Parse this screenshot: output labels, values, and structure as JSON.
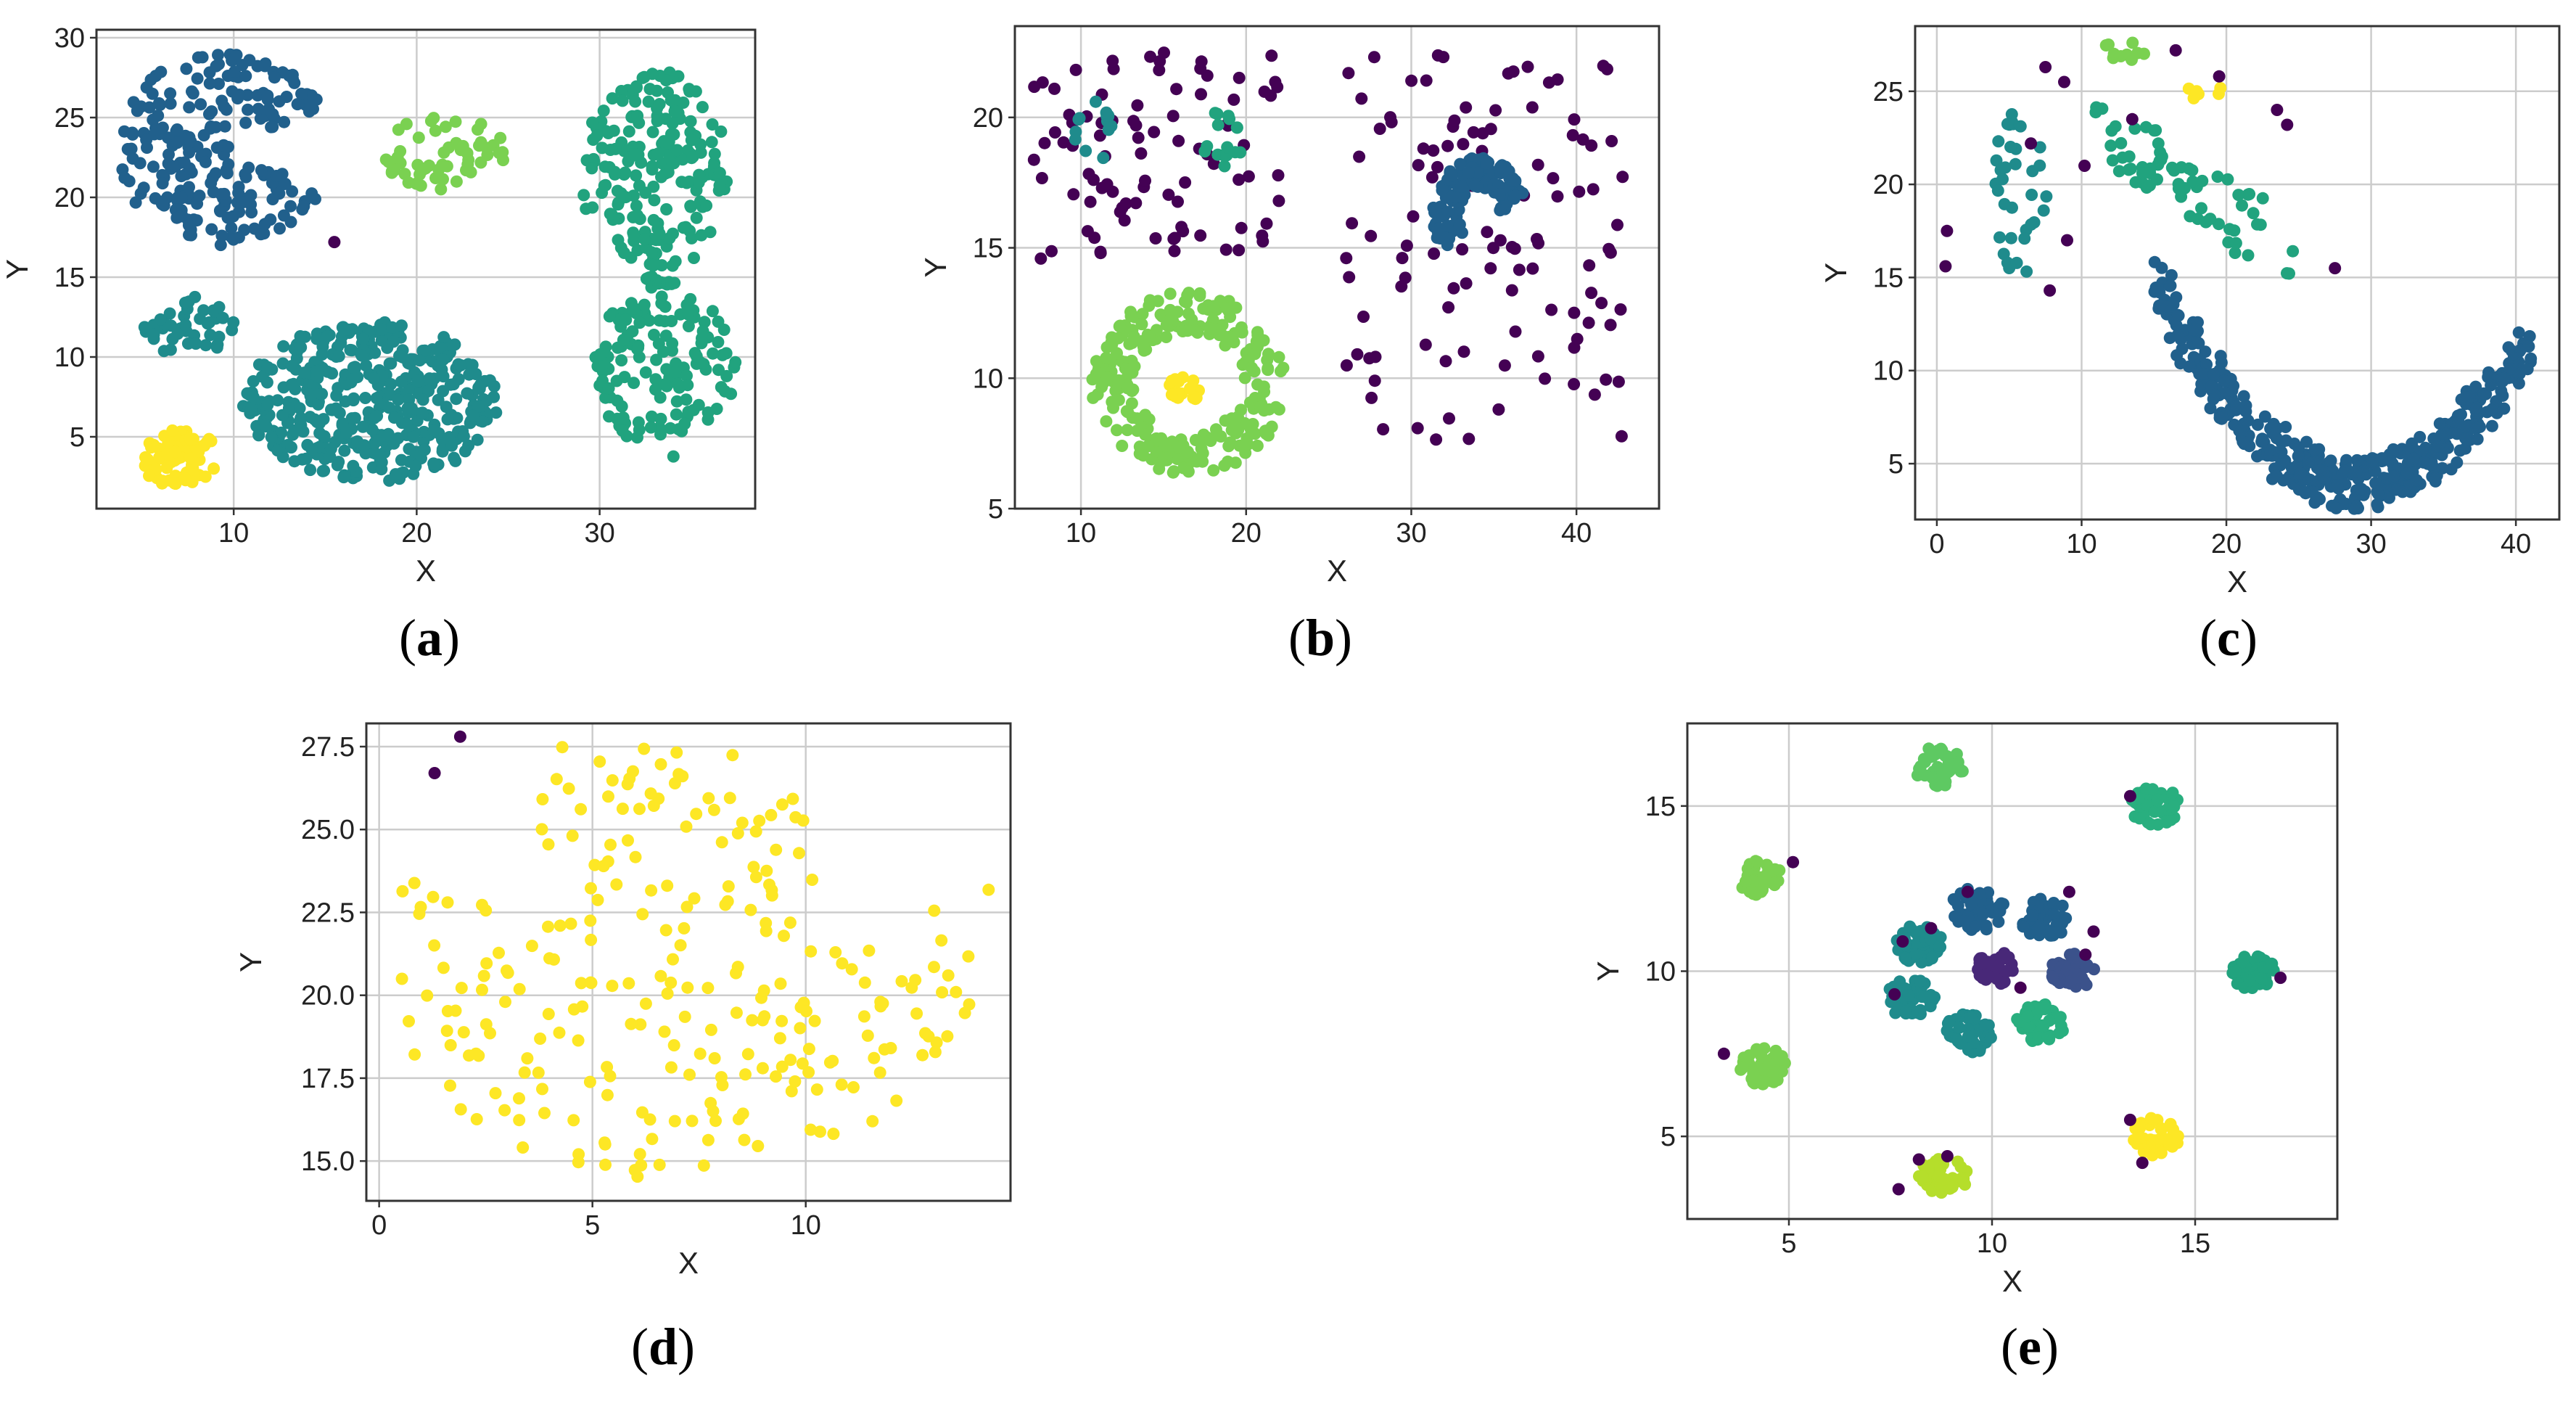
{
  "chart_data": [
    {
      "panel": "a",
      "type": "scatter",
      "caption": "a",
      "xlabel": "X",
      "ylabel": "Y",
      "xlim": [
        2.5,
        38.5
      ],
      "ylim": [
        0.5,
        30.5
      ],
      "xticks": [
        10,
        20,
        30
      ],
      "yticks": [
        5,
        10,
        15,
        20,
        25,
        30
      ],
      "grid": true,
      "colors": {
        "noise": "#440154",
        "c1": "#21608c",
        "c2": "#1f8b8c",
        "c3": "#21a37e",
        "c4": "#7ad151",
        "c5": "#fde725"
      },
      "clusters": [
        {
          "name": "c1",
          "shape": "pacman",
          "cx": 9.5,
          "cy": 23,
          "rx": 6,
          "ry": 6,
          "n": 240
        },
        {
          "name": "c4",
          "shape": "ellipse",
          "cx": 21.5,
          "cy": 22.8,
          "rx": 3.5,
          "ry": 2.3,
          "n": 55
        },
        {
          "name": "c3",
          "shape": "ellipse",
          "cx": 33,
          "cy": 21.5,
          "rx": 4,
          "ry": 6.5,
          "n": 200
        },
        {
          "name": "c3",
          "shape": "ellipse",
          "cx": 33.5,
          "cy": 9,
          "rx": 4,
          "ry": 5.5,
          "n": 140
        },
        {
          "name": "c3",
          "shape": "line",
          "x1": 32.5,
          "y1": 15,
          "x2": 34,
          "y2": 14.5,
          "n": 12
        },
        {
          "name": "c2",
          "shape": "ellipse",
          "cx": 17.5,
          "cy": 7.2,
          "rx": 7,
          "ry": 5,
          "n": 420
        },
        {
          "name": "c2",
          "shape": "ellipse",
          "cx": 7.5,
          "cy": 12,
          "rx": 2.5,
          "ry": 2,
          "n": 45
        },
        {
          "name": "c5",
          "shape": "ellipse",
          "cx": 7,
          "cy": 3.7,
          "rx": 2.2,
          "ry": 1.8,
          "n": 75
        }
      ],
      "noise_points": [
        [
          15.5,
          17.2
        ]
      ]
    },
    {
      "panel": "b",
      "type": "scatter",
      "caption": "b",
      "xlabel": "X",
      "ylabel": "Y",
      "xlim": [
        6,
        45
      ],
      "ylim": [
        5,
        23.5
      ],
      "xticks": [
        10,
        20,
        30,
        40
      ],
      "yticks": [
        5,
        10,
        15,
        20
      ],
      "grid": true,
      "colors": {
        "noise": "#440154",
        "c1": "#21608c",
        "c2": "#1f8b8c",
        "c3": "#21a37e",
        "c4": "#7ad151",
        "c5": "#fde725"
      },
      "clusters": [
        {
          "name": "noise",
          "shape": "grid",
          "x0": 7,
          "x1": 22,
          "y0": 14.5,
          "y1": 22.5,
          "n": 90
        },
        {
          "name": "noise",
          "shape": "grid",
          "x0": 26,
          "x1": 43,
          "y0": 7.5,
          "y1": 22.5,
          "n": 110
        },
        {
          "name": "c2",
          "shape": "ellipse",
          "cx": 10.8,
          "cy": 19.5,
          "rx": 1.2,
          "ry": 1.2,
          "n": 14
        },
        {
          "name": "c3",
          "shape": "ellipse",
          "cx": 18.5,
          "cy": 19,
          "rx": 1.3,
          "ry": 1.3,
          "n": 16
        },
        {
          "name": "c1",
          "shape": "arch",
          "cx": 35,
          "cy": 16.5,
          "rx": 4,
          "ry": 3,
          "n": 150
        },
        {
          "name": "c4",
          "shape": "ring",
          "cx": 16.5,
          "cy": 9.8,
          "rx": 6,
          "ry": 3.5,
          "n": 260
        },
        {
          "name": "c5",
          "shape": "ellipse",
          "cx": 16.3,
          "cy": 9.5,
          "rx": 1.1,
          "ry": 0.6,
          "n": 22
        }
      ],
      "noise_points": []
    },
    {
      "panel": "c",
      "type": "scatter",
      "caption": "c",
      "xlabel": "X",
      "ylabel": "Y",
      "xlim": [
        -1.5,
        43
      ],
      "ylim": [
        2,
        28.5
      ],
      "xticks": [
        0,
        10,
        20,
        30,
        40
      ],
      "yticks": [
        5,
        10,
        15,
        20,
        25
      ],
      "grid": true,
      "colors": {
        "noise": "#440154",
        "c1": "#21608c",
        "c2": "#1f8b8c",
        "c3": "#21a37e",
        "c4": "#7ad151",
        "c5": "#fde725"
      },
      "clusters": [
        {
          "name": "c2",
          "shape": "ellipse",
          "cx": 5.5,
          "cy": 19.5,
          "rx": 2.2,
          "ry": 4.5,
          "n": 35
        },
        {
          "name": "c3",
          "shape": "band",
          "x1": 11,
          "y1": 23,
          "x2": 25,
          "y2": 16,
          "w": 3.5,
          "n": 70
        },
        {
          "name": "c4",
          "shape": "ellipse",
          "cx": 13,
          "cy": 27.2,
          "rx": 1.5,
          "ry": 0.6,
          "n": 10
        },
        {
          "name": "c5",
          "shape": "ellipse",
          "cx": 18.5,
          "cy": 25,
          "rx": 1.2,
          "ry": 0.5,
          "n": 6
        },
        {
          "name": "c1",
          "shape": "ucurve",
          "n": 420
        }
      ],
      "noise_points": [
        [
          0.7,
          17.5
        ],
        [
          0.6,
          15.6
        ],
        [
          6.5,
          22.2
        ],
        [
          7.5,
          26.3
        ],
        [
          8.8,
          25.5
        ],
        [
          10.2,
          21.0
        ],
        [
          13.5,
          23.5
        ],
        [
          16.5,
          27.2
        ],
        [
          19.5,
          25.8
        ],
        [
          23.5,
          24.0
        ],
        [
          24.2,
          23.2
        ],
        [
          27.5,
          15.5
        ],
        [
          9.0,
          17.0
        ],
        [
          7.8,
          14.3
        ]
      ]
    },
    {
      "panel": "d",
      "type": "scatter",
      "caption": "d",
      "xlabel": "X",
      "ylabel": "Y",
      "xlim": [
        -0.3,
        14.8
      ],
      "ylim": [
        13.8,
        28.2
      ],
      "xticks": [
        0,
        5,
        10
      ],
      "yticks": [
        15.0,
        17.5,
        20.0,
        22.5,
        25.0,
        27.5
      ],
      "ytick_labels": [
        "15.0",
        "17.5",
        "20.0",
        "22.5",
        "25.0",
        "27.5"
      ],
      "grid": true,
      "colors": {
        "noise": "#440154",
        "c5": "#fde725"
      },
      "clusters": [
        {
          "name": "c5",
          "shape": "bowl",
          "n": 260
        }
      ],
      "noise_points": [
        [
          1.3,
          26.7
        ],
        [
          1.9,
          27.8
        ]
      ]
    },
    {
      "panel": "e",
      "type": "scatter",
      "caption": "e",
      "xlabel": "X",
      "ylabel": "Y",
      "xlim": [
        2.5,
        18.5
      ],
      "ylim": [
        2.5,
        17.5
      ],
      "xticks": [
        5,
        10,
        15
      ],
      "yticks": [
        5,
        10,
        15
      ],
      "grid": true,
      "colors": {
        "noise": "#440154",
        "p1": "#3b528b",
        "p2": "#482878",
        "c1": "#21608c",
        "c2": "#1f8b8c",
        "c3": "#21a37e",
        "c4": "#5ec962",
        "c5": "#fde725",
        "c6": "#b5de2b",
        "c7": "#7ad151",
        "c8": "#29af7f"
      },
      "clusters": [
        {
          "name": "c4",
          "shape": "blob",
          "cx": 8.7,
          "cy": 16.2,
          "r": 0.6,
          "n": 45
        },
        {
          "name": "c8",
          "shape": "blob",
          "cx": 14,
          "cy": 15,
          "r": 0.6,
          "n": 45
        },
        {
          "name": "c7",
          "shape": "blob",
          "cx": 4.3,
          "cy": 12.8,
          "r": 0.55,
          "n": 45
        },
        {
          "name": "c3",
          "shape": "blob",
          "cx": 16.4,
          "cy": 10,
          "r": 0.55,
          "n": 45
        },
        {
          "name": "c7",
          "shape": "blob",
          "cx": 4.4,
          "cy": 7.1,
          "r": 0.6,
          "n": 45
        },
        {
          "name": "c5",
          "shape": "blob",
          "cx": 14,
          "cy": 5,
          "r": 0.6,
          "n": 45
        },
        {
          "name": "c6",
          "shape": "blob",
          "cx": 8.8,
          "cy": 3.8,
          "r": 0.6,
          "n": 45
        },
        {
          "name": "c1",
          "shape": "blob",
          "cx": 9.6,
          "cy": 11.9,
          "r": 0.7,
          "n": 55
        },
        {
          "name": "c1",
          "shape": "blob",
          "cx": 11.3,
          "cy": 11.6,
          "r": 0.6,
          "n": 45
        },
        {
          "name": "c2",
          "shape": "blob",
          "cx": 8.2,
          "cy": 10.8,
          "r": 0.6,
          "n": 45
        },
        {
          "name": "c2",
          "shape": "blob",
          "cx": 8,
          "cy": 9.2,
          "r": 0.6,
          "n": 45
        },
        {
          "name": "c2",
          "shape": "blob",
          "cx": 9.4,
          "cy": 8.1,
          "r": 0.6,
          "n": 45
        },
        {
          "name": "c8",
          "shape": "blob",
          "cx": 11.2,
          "cy": 8.4,
          "r": 0.6,
          "n": 45
        },
        {
          "name": "p2",
          "shape": "blob",
          "cx": 10.1,
          "cy": 10.1,
          "r": 0.5,
          "n": 40
        },
        {
          "name": "p1",
          "shape": "blob",
          "cx": 12,
          "cy": 10,
          "r": 0.55,
          "n": 40
        }
      ],
      "noise_points": [
        [
          3.4,
          7.5
        ],
        [
          5.1,
          13.3
        ],
        [
          7.7,
          3.4
        ],
        [
          8.2,
          4.3
        ],
        [
          8.9,
          4.4
        ],
        [
          7.6,
          9.3
        ],
        [
          7.8,
          10.9
        ],
        [
          9.4,
          12.4
        ],
        [
          11.9,
          12.4
        ],
        [
          12.5,
          11.2
        ],
        [
          12.3,
          10.5
        ],
        [
          13.4,
          15.3
        ],
        [
          13.4,
          5.5
        ],
        [
          13.7,
          4.2
        ],
        [
          17.1,
          9.8
        ],
        [
          10.7,
          9.5
        ],
        [
          8.5,
          11.3
        ]
      ]
    }
  ]
}
